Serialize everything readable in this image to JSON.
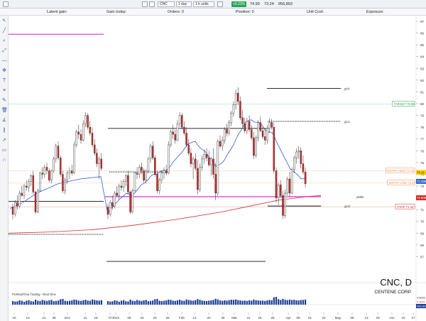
{
  "toolbar": {
    "symbol": "CNC",
    "interval": "1 day",
    "units": "1 k units",
    "change_pill": "+0.23%",
    "price_a": "74.99",
    "price_b": "73.24",
    "volume_readout": "956,893"
  },
  "status": {
    "latent_gain": "Latent gain:",
    "gain_today": "Gain today:",
    "orders": "Orders: 0",
    "position": "Position: 0",
    "unit_cost": "Unit Cost:",
    "exposure": "Exposure:"
  },
  "colors": {
    "up": "#ffffff",
    "down": "#d62a2a",
    "wick": "#222222",
    "ma_fast": "#2f5fd0",
    "ma_slow": "#d62a2a",
    "magenta": "#e040e0",
    "target_green": "#2e9e4f",
    "entry_orange": "#f08a4b",
    "stop_red": "#d62a2a",
    "volume": "#1c3f94"
  },
  "chart_data": {
    "type": "candlestick",
    "title": "CNC, D",
    "subtitle": "CENTENE CORP.",
    "watermark": "ProRealTime Trading - Real Time",
    "yaxis": {
      "range": [
        66,
        87
      ],
      "ticks": [
        67,
        68,
        69,
        70,
        71,
        72,
        73,
        74,
        75,
        76,
        77,
        78,
        79,
        80,
        81,
        82,
        83,
        84,
        85,
        86,
        87
      ]
    },
    "xaxis": {
      "labels": [
        "10",
        "13",
        "21",
        "28",
        "Dec",
        "11",
        "18",
        "27",
        "2024",
        "09",
        "16",
        "23",
        "29",
        "Feb",
        "12",
        "20",
        "26",
        "Mar",
        "11",
        "18",
        "25",
        "Apr",
        "08",
        "15",
        "22",
        "May",
        "08",
        "13",
        "20",
        "Jun",
        "10",
        "17"
      ]
    },
    "candles": [
      [
        71.2,
        71.5,
        70.2,
        70.6
      ],
      [
        70.6,
        71.8,
        70.4,
        71.6
      ],
      [
        71.6,
        72.2,
        71.0,
        71.3
      ],
      [
        71.3,
        72.6,
        71.1,
        72.4
      ],
      [
        72.4,
        73.0,
        72.1,
        72.2
      ],
      [
        72.2,
        73.2,
        71.9,
        73.0
      ],
      [
        73.0,
        73.5,
        72.6,
        72.9
      ],
      [
        72.9,
        73.6,
        72.5,
        73.4
      ],
      [
        73.4,
        74.0,
        73.0,
        73.9
      ],
      [
        73.9,
        74.3,
        72.3,
        72.5
      ],
      [
        72.5,
        72.6,
        70.6,
        70.8
      ],
      [
        70.8,
        72.8,
        70.7,
        72.6
      ],
      [
        72.6,
        74.2,
        72.5,
        74.1
      ],
      [
        74.1,
        74.6,
        73.6,
        74.0
      ],
      [
        74.0,
        74.8,
        73.7,
        74.6
      ],
      [
        74.6,
        75.0,
        74.0,
        74.3
      ],
      [
        74.3,
        74.5,
        73.3,
        73.5
      ],
      [
        73.5,
        74.4,
        73.2,
        74.3
      ],
      [
        74.3,
        75.5,
        74.1,
        75.3
      ],
      [
        75.3,
        76.6,
        75.0,
        76.4
      ],
      [
        76.4,
        76.8,
        75.2,
        75.4
      ],
      [
        75.4,
        75.6,
        73.8,
        74.0
      ],
      [
        74.0,
        74.3,
        72.4,
        72.6
      ],
      [
        72.6,
        73.7,
        72.3,
        73.5
      ],
      [
        73.5,
        74.3,
        73.2,
        74.1
      ],
      [
        74.1,
        74.6,
        73.6,
        74.3
      ],
      [
        74.3,
        74.8,
        73.9,
        74.1
      ],
      [
        74.1,
        76.8,
        74.0,
        76.5
      ],
      [
        76.5,
        77.8,
        76.3,
        77.6
      ],
      [
        77.6,
        78.2,
        77.0,
        77.4
      ],
      [
        77.4,
        77.8,
        76.6,
        76.9
      ],
      [
        76.9,
        78.6,
        76.8,
        78.3
      ],
      [
        78.3,
        79.3,
        78.0,
        79.0
      ],
      [
        79.0,
        79.2,
        77.8,
        78.0
      ],
      [
        78.0,
        78.5,
        77.3,
        77.5
      ],
      [
        77.5,
        78.0,
        76.3,
        76.5
      ],
      [
        76.5,
        77.0,
        75.6,
        75.8
      ],
      [
        75.8,
        76.2,
        74.6,
        74.9
      ],
      [
        74.9,
        75.5,
        73.6,
        75.3
      ],
      [
        75.3,
        75.8,
        74.3,
        74.5
      ],
      [
        74.5,
        75.2,
        72.3,
        72.7
      ],
      [
        72.7,
        74.9,
        72.5,
        74.6
      ],
      [
        74.6,
        75.6,
        74.3,
        75.3
      ],
      [
        75.3,
        76.1,
        74.9,
        75.7
      ],
      [
        75.7,
        76.2,
        75.1,
        75.4
      ],
      [
        75.4,
        76.0,
        74.6,
        74.8
      ],
      [
        74.8,
        75.5,
        73.9,
        75.3
      ],
      [
        75.3,
        76.2,
        73.6,
        74.0
      ],
      [
        74.0,
        75.0,
        71.8,
        72.4
      ],
      [
        72.4,
        77.0,
        72.2,
        76.8
      ],
      [
        76.8,
        77.3,
        76.2,
        76.4
      ],
      [
        76.4,
        77.2,
        76.0,
        76.9
      ],
      [
        76.9,
        78.0,
        76.6,
        77.8
      ],
      [
        77.8,
        78.3,
        77.2,
        77.5
      ],
      [
        77.5,
        78.6,
        77.3,
        78.4
      ],
      [
        78.4,
        79.4,
        78.1,
        79.2
      ],
      [
        79.2,
        80.2,
        78.9,
        79.9
      ],
      [
        79.9,
        81.2,
        79.5,
        80.9
      ],
      [
        80.9,
        81.4,
        79.9,
        80.2
      ],
      [
        80.2,
        80.6,
        78.6,
        78.8
      ],
      [
        78.8,
        79.5,
        78.0,
        78.3
      ],
      [
        78.3,
        78.8,
        77.5,
        77.7
      ],
      [
        77.7,
        78.8,
        77.4,
        78.5
      ],
      [
        78.5,
        79.0,
        77.6,
        77.8
      ],
      [
        77.8,
        78.2,
        76.9,
        77.1
      ],
      [
        77.1,
        77.6,
        75.3,
        75.6
      ],
      [
        75.6,
        77.3,
        75.4,
        77.1
      ],
      [
        77.1,
        78.6,
        76.8,
        78.4
      ],
      [
        78.4,
        78.9,
        77.6,
        77.7
      ],
      [
        77.7,
        78.0,
        77.0,
        77.2
      ],
      [
        77.2,
        77.9,
        76.5,
        76.9
      ],
      [
        76.9,
        78.2,
        76.6,
        77.9
      ],
      [
        77.9,
        78.8,
        77.5,
        78.4
      ],
      [
        78.4,
        78.7,
        77.8,
        78.0
      ],
      [
        78.0,
        78.4,
        74.1,
        74.3
      ],
      [
        74.3,
        74.6,
        71.6,
        72.0
      ],
      [
        72.0,
        73.3,
        71.4,
        73.1
      ],
      [
        73.1,
        73.5,
        72.0,
        72.2
      ],
      [
        72.2,
        72.6,
        70.2,
        70.5
      ],
      [
        70.5,
        72.7,
        70.3,
        72.4
      ],
      [
        72.4,
        73.8,
        72.2,
        73.6
      ],
      [
        73.6,
        74.2,
        72.1,
        72.4
      ],
      [
        72.4,
        74.6,
        72.3,
        74.4
      ],
      [
        74.4,
        75.6,
        74.1,
        75.4
      ],
      [
        75.4,
        76.2,
        74.9,
        75.9
      ],
      [
        75.9,
        76.4,
        75.3,
        76.0
      ],
      [
        76.0,
        76.3,
        74.5,
        74.9
      ],
      [
        74.9,
        75.6,
        74.0,
        74.2
      ],
      [
        74.2,
        74.6,
        72.9,
        73.2
      ]
    ],
    "volume": [
      44,
      38,
      41,
      52,
      47,
      36,
      49,
      55,
      42,
      39,
      61,
      48,
      44,
      57,
      50,
      46,
      53,
      58,
      42,
      45,
      51,
      66,
      70,
      48,
      43,
      47,
      52,
      62,
      58,
      49,
      46,
      54,
      60,
      50,
      47,
      63,
      57,
      52,
      49,
      55,
      68,
      59,
      50,
      46,
      44,
      48,
      52,
      58,
      72,
      64,
      51,
      47,
      53,
      49,
      55,
      61,
      58,
      64,
      56,
      52,
      47,
      50,
      46,
      53,
      49,
      62,
      55,
      51,
      48,
      50,
      46,
      52,
      57,
      54,
      90,
      95,
      66,
      58,
      70,
      60,
      55,
      62,
      57,
      60,
      54,
      51,
      56,
      58,
      62
    ],
    "volume_labels": [
      "4.602k",
      "2.20%",
      "956,893"
    ],
    "moving_averages": [
      {
        "name": "fast",
        "color": "#2f5fd0"
      },
      {
        "name": "slow",
        "color": "#d62a2a"
      }
    ],
    "levels": [
      {
        "label": "TARGET 79.98",
        "value": 79.98,
        "color": "#2e9e4f",
        "style": "dotted"
      },
      {
        "label": "ENTRY HIGH 74.31",
        "value": 74.31,
        "color": "#f08a4b",
        "style": "dotted"
      },
      {
        "label": "ENTRY LOW 73.27",
        "value": 73.27,
        "color": "#f08a4b",
        "style": "dotted"
      },
      {
        "label": "STOP 71.24",
        "value": 71.24,
        "color": "#d62a2a",
        "style": "dotted"
      }
    ],
    "price_tags": [
      {
        "text": "74.16",
        "value": 74.16,
        "bg": "#ffd400",
        "fg": "#000"
      },
      {
        "text": "73.398",
        "value": 73.398,
        "bg": "#2f5fd0",
        "fg": "#fff"
      },
      {
        "text": "72.005",
        "value": 72.005,
        "bg": "#d62a2a",
        "fg": "#fff"
      }
    ],
    "annotations": [
      "gHI",
      "gCL",
      "yMID",
      "gLO"
    ]
  }
}
